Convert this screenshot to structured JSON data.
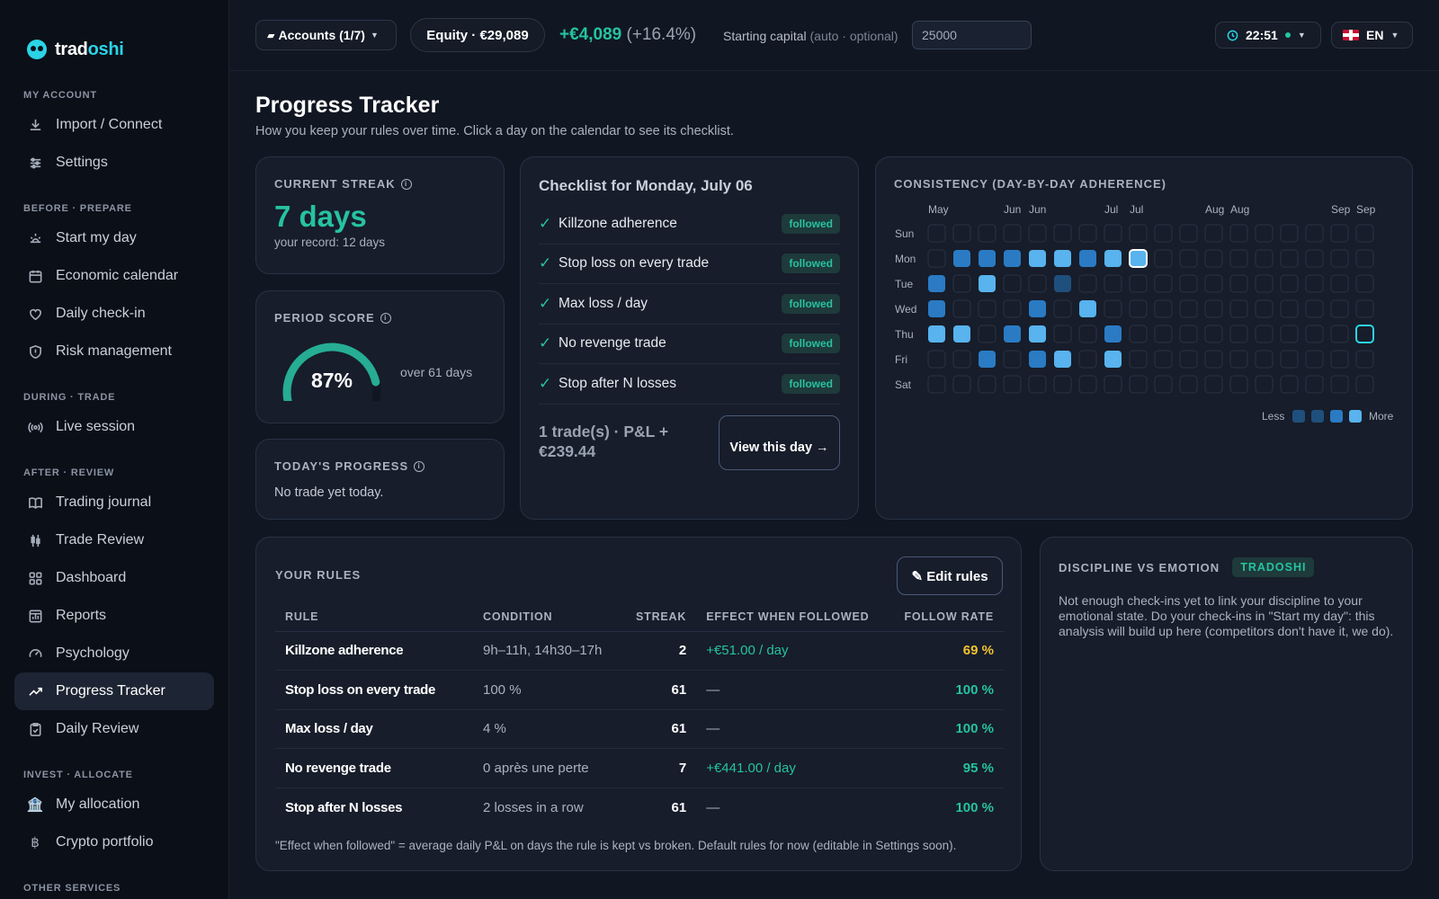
{
  "brand": {
    "name_a": "trad",
    "name_b": "oshi"
  },
  "sidebar": {
    "sections": [
      {
        "title": "MY ACCOUNT",
        "items": [
          {
            "label": "Import / Connect",
            "icon": "download-icon"
          },
          {
            "label": "Settings",
            "icon": "sliders-icon"
          }
        ]
      },
      {
        "title": "BEFORE · PREPARE",
        "items": [
          {
            "label": "Start my day",
            "icon": "sunrise-icon"
          },
          {
            "label": "Economic calendar",
            "icon": "calendar-icon"
          },
          {
            "label": "Daily check-in",
            "icon": "heart-icon"
          },
          {
            "label": "Risk management",
            "icon": "shield-icon"
          }
        ]
      },
      {
        "title": "DURING · TRADE",
        "items": [
          {
            "label": "Live session",
            "icon": "broadcast-icon"
          }
        ]
      },
      {
        "title": "AFTER · REVIEW",
        "items": [
          {
            "label": "Trading journal",
            "icon": "book-icon"
          },
          {
            "label": "Trade Review",
            "icon": "candles-icon"
          },
          {
            "label": "Dashboard",
            "icon": "grid-icon"
          },
          {
            "label": "Reports",
            "icon": "report-icon"
          },
          {
            "label": "Psychology",
            "icon": "gauge-icon"
          },
          {
            "label": "Progress Tracker",
            "icon": "trend-up-icon",
            "active": true
          },
          {
            "label": "Daily Review",
            "icon": "clipboard-icon"
          }
        ]
      },
      {
        "title": "INVEST · ALLOCATE",
        "items": [
          {
            "label": "My allocation",
            "icon": "bank-icon"
          },
          {
            "label": "Crypto portfolio",
            "icon": "bitcoin-icon"
          }
        ]
      },
      {
        "title": "OTHER SERVICES",
        "items": []
      }
    ]
  },
  "topbar": {
    "accounts_label": "Accounts (1/7)",
    "equity_label": "Equity · €29,089",
    "pnl_value": "+€4,089",
    "pnl_pct": "(+16.4%)",
    "capital_label": "Starting capital",
    "capital_hint": "(auto · optional)",
    "capital_value": "25000",
    "clock": "22:51",
    "language": "EN"
  },
  "page": {
    "title": "Progress Tracker",
    "subtitle": "How you keep your rules over time. Click a day on the calendar to see its checklist."
  },
  "streak": {
    "label": "CURRENT STREAK",
    "value": "7 days",
    "record": "your record: 12 days"
  },
  "score": {
    "label": "PERIOD SCORE",
    "value": "87%",
    "percent": 87,
    "over": "over 61 days"
  },
  "today": {
    "label": "TODAY'S PROGRESS",
    "text": "No trade yet today."
  },
  "checklist": {
    "title": "Checklist for Monday, July 06",
    "items": [
      {
        "label": "Killzone adherence",
        "status": "followed"
      },
      {
        "label": "Stop loss on every trade",
        "status": "followed"
      },
      {
        "label": "Max loss / day",
        "status": "followed"
      },
      {
        "label": "No revenge trade",
        "status": "followed"
      },
      {
        "label": "Stop after N losses",
        "status": "followed"
      }
    ],
    "summary": "1 trade(s) · P&L + €239.44",
    "view_label": "View this day →"
  },
  "consistency": {
    "label": "CONSISTENCY (DAY-BY-DAY ADHERENCE)",
    "month_labels": [
      {
        "week": 0,
        "label": "May"
      },
      {
        "week": 3,
        "label": "Jun"
      },
      {
        "week": 4,
        "label": "Jun"
      },
      {
        "week": 7,
        "label": "Jul"
      },
      {
        "week": 8,
        "label": "Jul"
      },
      {
        "week": 11,
        "label": "Aug"
      },
      {
        "week": 12,
        "label": "Aug"
      },
      {
        "week": 16,
        "label": "Sep"
      },
      {
        "week": 17,
        "label": "Sep"
      }
    ],
    "day_labels": [
      "Sun",
      "Mon",
      "Tue",
      "Wed",
      "Thu",
      "Fri",
      "Sat"
    ],
    "weeks": 18,
    "levels": [
      [
        0,
        0,
        0,
        0,
        0,
        0,
        0,
        0,
        0,
        0,
        0,
        0,
        0,
        0,
        0,
        0,
        0,
        0
      ],
      [
        0,
        2,
        2,
        2,
        3,
        3,
        2,
        3,
        4,
        0,
        0,
        0,
        0,
        0,
        0,
        0,
        0,
        0
      ],
      [
        2,
        0,
        3,
        0,
        0,
        1,
        0,
        0,
        0,
        0,
        0,
        0,
        0,
        0,
        0,
        0,
        0,
        0
      ],
      [
        2,
        0,
        0,
        0,
        2,
        0,
        3,
        0,
        0,
        0,
        0,
        0,
        0,
        0,
        0,
        0,
        0,
        0
      ],
      [
        3,
        3,
        0,
        2,
        3,
        0,
        0,
        2,
        0,
        0,
        0,
        0,
        0,
        0,
        0,
        0,
        0,
        5
      ],
      [
        0,
        0,
        2,
        0,
        2,
        3,
        0,
        3,
        0,
        0,
        0,
        0,
        0,
        0,
        0,
        0,
        0,
        0
      ],
      [
        0,
        0,
        0,
        0,
        0,
        0,
        0,
        0,
        0,
        0,
        0,
        0,
        0,
        0,
        0,
        0,
        0,
        0
      ]
    ],
    "legend_less": "Less",
    "legend_more": "More",
    "colors": [
      "#1e2636",
      "#1f4f7d",
      "#2a7bc4",
      "#58b3ee",
      "#ffffff",
      "#2bd3e6"
    ]
  },
  "rules": {
    "label": "YOUR RULES",
    "edit_label": "✎ Edit rules",
    "columns": [
      "RULE",
      "CONDITION",
      "STREAK",
      "EFFECT WHEN FOLLOWED",
      "FOLLOW RATE"
    ],
    "rows": [
      {
        "rule": "Killzone adherence",
        "condition": "9h–11h, 14h30–17h",
        "streak": "2",
        "effect": "+€51.00 / day",
        "rate": "69 %",
        "rate_color": "#f2c233"
      },
      {
        "rule": "Stop loss on every trade",
        "condition": "100 %",
        "streak": "61",
        "effect": "—",
        "rate": "100 %",
        "rate_color": "#26c2a1"
      },
      {
        "rule": "Max loss / day",
        "condition": "4 %",
        "streak": "61",
        "effect": "—",
        "rate": "100 %",
        "rate_color": "#26c2a1"
      },
      {
        "rule": "No revenge trade",
        "condition": "0 après une perte",
        "streak": "7",
        "effect": "+€441.00 / day",
        "rate": "95 %",
        "rate_color": "#26c2a1"
      },
      {
        "rule": "Stop after N losses",
        "condition": "2 losses in a row",
        "streak": "61",
        "effect": "—",
        "rate": "100 %",
        "rate_color": "#26c2a1"
      }
    ],
    "note": "\"Effect when followed\" = average daily P&L on days the rule is kept vs broken. Default rules for now (editable in Settings soon)."
  },
  "discipline": {
    "label": "DISCIPLINE VS EMOTION",
    "badge": "TRADOSHI",
    "text": "Not enough check-ins yet to link your discipline to your emotional state. Do your check-ins in \"Start my day\": this analysis will build up here (competitors don't have it, we do)."
  }
}
